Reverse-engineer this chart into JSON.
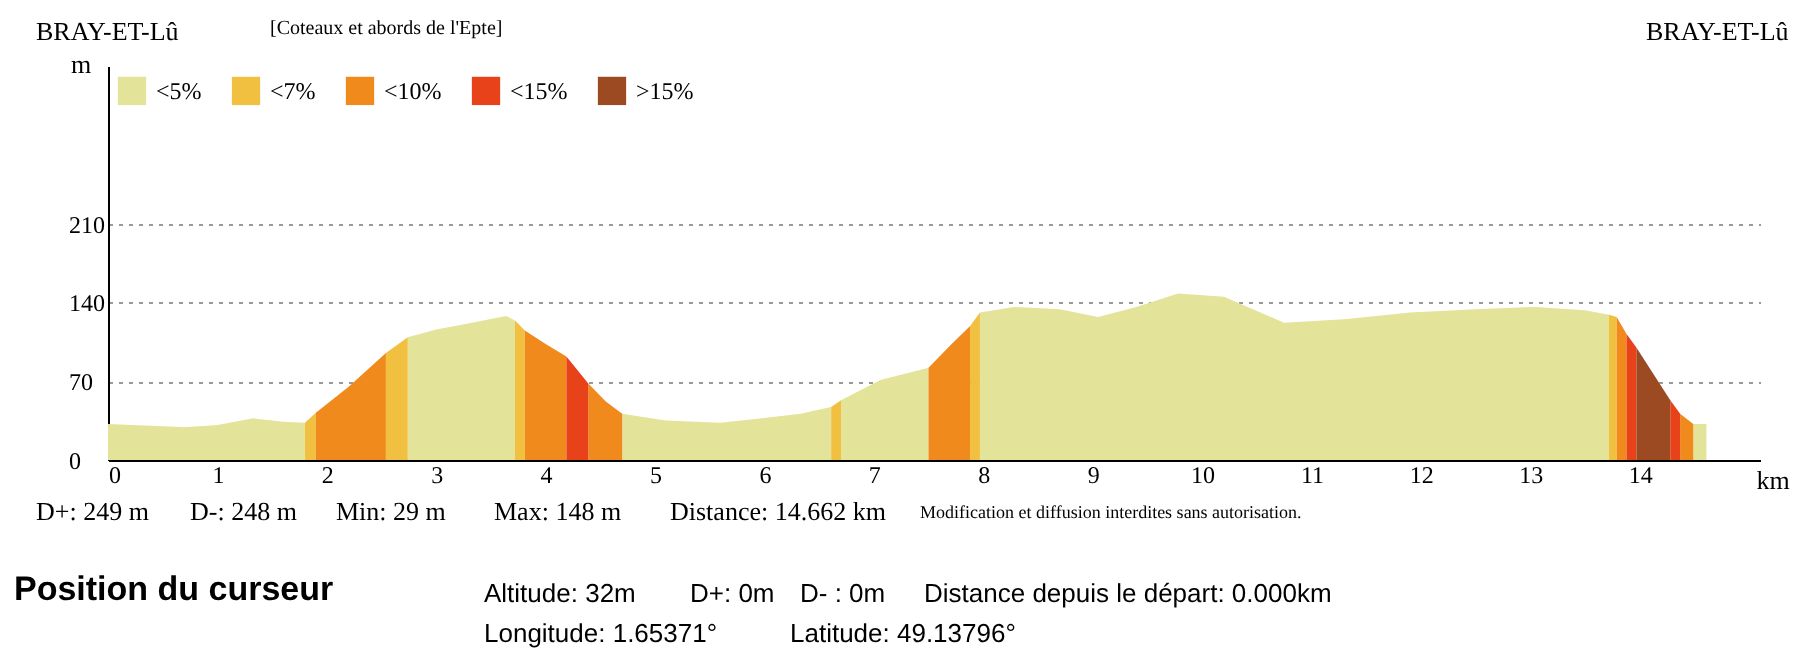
{
  "chart_data": {
    "type": "area",
    "title": "[Coteaux et abords de l'Epte]",
    "xlabel": "km",
    "ylabel": "m",
    "xlim": [
      0,
      15.1
    ],
    "xticks": [
      0,
      1,
      2,
      3,
      4,
      5,
      6,
      7,
      8,
      9,
      10,
      11,
      12,
      13,
      14
    ],
    "ylim": [
      0,
      350
    ],
    "yticks": [
      0,
      70,
      140,
      210
    ],
    "grid": "y",
    "legend": "top left",
    "series": [
      {
        "name": "<5%",
        "color": "#e3e39a",
        "x": [
          0,
          0.5,
          0.7,
          1,
          1.33,
          1.6,
          1.8,
          2.27,
          2.74,
          3.0,
          3.28,
          3.64,
          3.72,
          4.2,
          4.7,
          5.1,
          5.6,
          6.33,
          6.61,
          6.65,
          6.7,
          7.06,
          7.5,
          7.7,
          7.97,
          8.28,
          8.7,
          9.05,
          9.4,
          9.78,
          10.2,
          10.75,
          11.3,
          11.9,
          12.5,
          13.05,
          13.5,
          13.72,
          14.1,
          14.49,
          14.61
        ],
        "values": [
          32,
          30,
          29,
          31,
          37,
          34,
          33,
          null,
          109,
          116,
          121,
          128,
          124,
          null,
          41,
          35,
          33,
          41,
          47,
          null,
          53,
          71,
          82,
          null,
          131,
          136,
          134,
          127,
          136,
          148,
          145,
          122,
          125,
          131,
          134,
          136,
          133,
          129,
          null,
          32,
          32
        ]
      },
      {
        "name": "<7%",
        "color": "#f2c040",
        "x": [
          1.8,
          1.9,
          2.2,
          2.54,
          2.74,
          3.2,
          3.72,
          3.81,
          5.2,
          6.61,
          6.7,
          7.3,
          7.88,
          7.97,
          10,
          13.72,
          13.79
        ],
        "values": [
          33,
          42,
          null,
          95,
          109,
          null,
          124,
          115,
          null,
          47,
          53,
          null,
          119,
          131,
          null,
          129,
          127
        ]
      },
      {
        "name": "<10%",
        "color": "#f08a1c",
        "x": [
          1.9,
          2.2,
          2.54,
          3.2,
          3.81,
          4.0,
          4.19,
          4.3,
          4.39,
          4.55,
          4.7,
          6,
          7.5,
          7.7,
          7.88,
          10,
          13.79,
          13.88,
          14.1,
          14.37,
          14.49
        ],
        "values": [
          42,
          65,
          95,
          null,
          115,
          103,
          92,
          null,
          68,
          52,
          41,
          null,
          82,
          102,
          119,
          null,
          127,
          112,
          null,
          41,
          32
        ]
      },
      {
        "name": "<15%",
        "color": "#e8421a",
        "x": [
          4.19,
          4.39,
          9,
          13.88,
          13.97,
          14.1,
          14.28,
          14.37
        ],
        "values": [
          92,
          68,
          null,
          112,
          100,
          null,
          53,
          41
        ]
      },
      {
        "name": ">15%",
        "color": "#9c4a22",
        "x": [
          13.97,
          14.28
        ],
        "values": [
          100,
          53
        ]
      }
    ],
    "annotations": [
      "BRAY-ET-Lû",
      "BRAY-ET-Lû",
      "D+: 249 m",
      "D-: 248 m",
      "Min: 29 m",
      "Max: 148 m",
      "Distance: 14.662 km",
      "Modification et diffusion interdites sans autorisation.",
      "Position du curseur",
      "Altitude: 32m",
      "D+: 0m",
      "D- : 0m",
      "Distance depuis le départ: 0.000km",
      "Longitude: 1.65371°",
      "Latitude: 49.13796°"
    ]
  }
}
